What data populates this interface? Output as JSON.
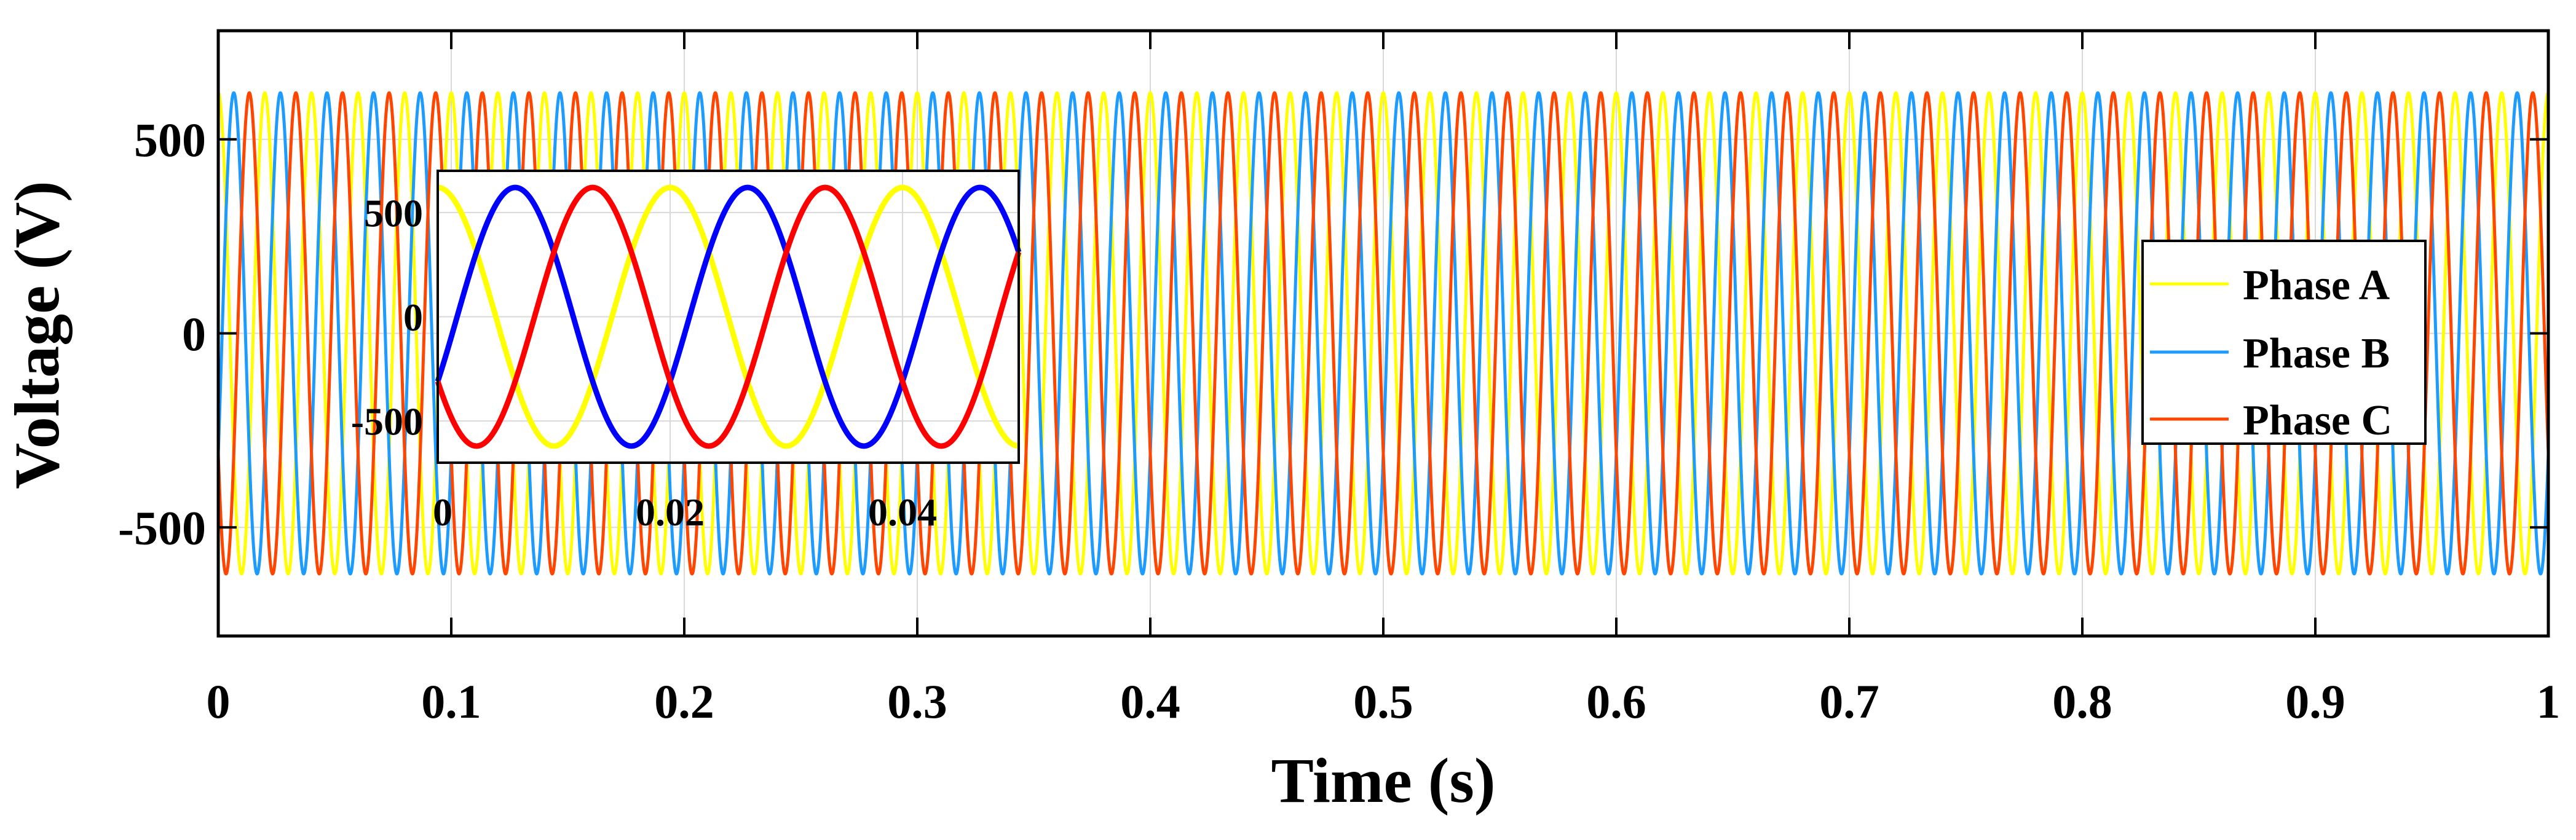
{
  "chart_data": [
    {
      "name": "main",
      "type": "line",
      "xlabel": "Time (s)",
      "ylabel": "Voltage (V)",
      "xlim": [
        0,
        1
      ],
      "ylim": [
        -780,
        780
      ],
      "grid": true,
      "xticks": [
        0,
        0.1,
        0.2,
        0.3,
        0.4,
        0.5,
        0.6,
        0.7,
        0.8,
        0.9,
        1
      ],
      "xtick_labels": [
        "0",
        "0.1",
        "0.2",
        "0.3",
        "0.4",
        "0.5",
        "0.6",
        "0.7",
        "0.8",
        "0.9",
        "1"
      ],
      "yticks": [
        -500,
        0,
        500
      ],
      "ytick_labels": [
        "-500",
        "0",
        "500"
      ],
      "frequency_hz": 50,
      "amplitude_v": 620,
      "series": [
        {
          "name": "Phase A",
          "color": "#ffff00",
          "phase_deg": 90
        },
        {
          "name": "Phase B",
          "color": "#1e9bff",
          "phase_deg": -30
        },
        {
          "name": "Phase C",
          "color": "#ff4500",
          "phase_deg": 210
        }
      ],
      "legend": {
        "position": "right",
        "entries": [
          "Phase A",
          "Phase B",
          "Phase C"
        ]
      }
    },
    {
      "name": "inset",
      "type": "line",
      "position": "top-left inset",
      "xlim": [
        0,
        0.05
      ],
      "ylim": [
        -700,
        700
      ],
      "grid": true,
      "xticks": [
        0,
        0.02,
        0.04
      ],
      "xtick_labels": [
        "0",
        "0.02",
        "0.04"
      ],
      "yticks": [
        -500,
        0,
        500
      ],
      "ytick_labels": [
        "-500",
        "0",
        "500"
      ],
      "frequency_hz": 50,
      "amplitude_v": 620,
      "series": [
        {
          "name": "Phase A",
          "color": "#ffff00",
          "phase_deg": 90
        },
        {
          "name": "Phase B",
          "color": "#0000ff",
          "phase_deg": -30
        },
        {
          "name": "Phase C",
          "color": "#ff0000",
          "phase_deg": 210
        }
      ]
    }
  ]
}
